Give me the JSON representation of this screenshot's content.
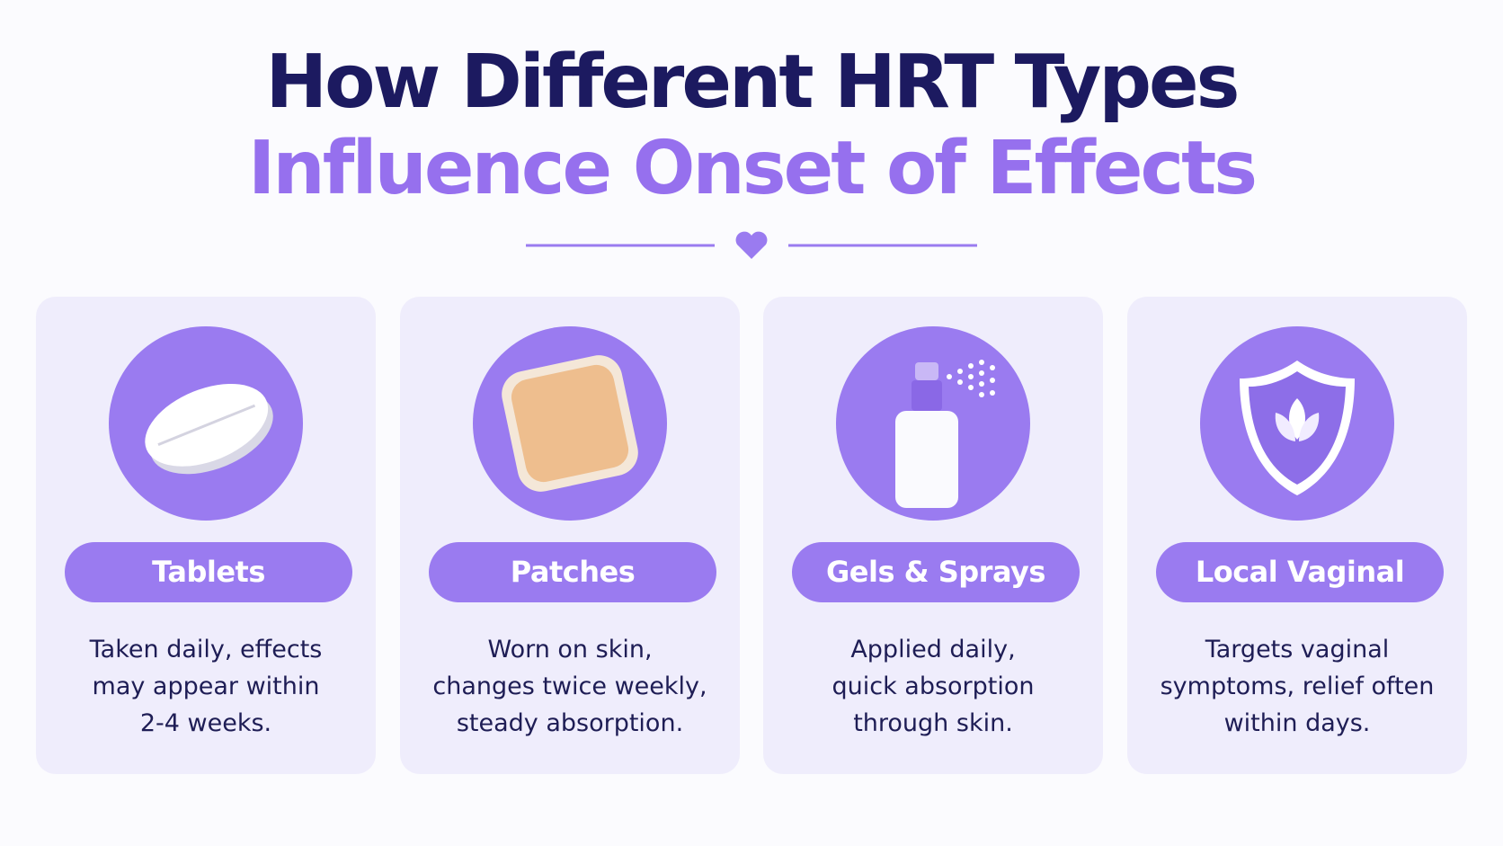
{
  "header": {
    "title_line1": "How Different HRT Types",
    "title_line2": "Influence Onset of Effects"
  },
  "cards": [
    {
      "label": "Tablets",
      "description": [
        "Taken daily,  effects",
        "may appear within",
        "2-4 weeks."
      ]
    },
    {
      "label": "Patches",
      "description": [
        "Worn on skin,",
        "changes twice weekly,",
        "steady absorption."
      ]
    },
    {
      "label": "Gels & Sprays",
      "description": [
        "Applied daily,",
        "quick absorption",
        "through skin."
      ]
    },
    {
      "label": "Local Vaginal",
      "description": [
        "Targets vaginal",
        "symptoms, relief often",
        "within days."
      ]
    }
  ]
}
